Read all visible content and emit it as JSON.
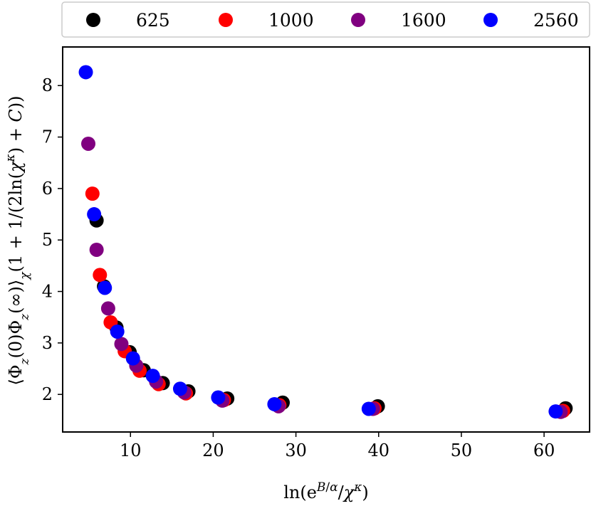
{
  "chart_data": {
    "type": "scatter",
    "xlabel": "ln(e^{B/α}/χ^κ)",
    "ylabel": "⟨Φz(0)Φz(∞)⟩χ(1 + 1/(2ln(χ^κ) + C))",
    "xlim": [
      1.8,
      65.5
    ],
    "ylim": [
      1.27,
      8.75
    ],
    "x_ticks": [
      10,
      20,
      30,
      40,
      50,
      60
    ],
    "y_ticks": [
      2,
      3,
      4,
      5,
      6,
      7,
      8
    ],
    "grid": false,
    "legend_position": "top",
    "series": [
      {
        "name": "625",
        "color": "#000000",
        "points": [
          [
            5.9,
            5.38
          ],
          [
            6.8,
            4.1
          ],
          [
            8.3,
            3.3
          ],
          [
            9.9,
            2.82
          ],
          [
            11.6,
            2.47
          ],
          [
            13.9,
            2.22
          ],
          [
            17.0,
            2.06
          ],
          [
            21.7,
            1.92
          ],
          [
            28.4,
            1.84
          ],
          [
            39.9,
            1.77
          ],
          [
            62.6,
            1.73
          ]
        ]
      },
      {
        "name": "1000",
        "color": "#ff0000",
        "points": [
          [
            5.4,
            5.9
          ],
          [
            6.3,
            4.32
          ],
          [
            7.6,
            3.4
          ],
          [
            9.3,
            2.84
          ],
          [
            11.1,
            2.46
          ],
          [
            13.4,
            2.2
          ],
          [
            16.7,
            2.02
          ],
          [
            21.3,
            1.89
          ],
          [
            28.0,
            1.79
          ],
          [
            39.5,
            1.73
          ],
          [
            62.3,
            1.68
          ]
        ]
      },
      {
        "name": "1600",
        "color": "#800080",
        "points": [
          [
            4.9,
            6.87
          ],
          [
            5.9,
            4.81
          ],
          [
            7.3,
            3.67
          ],
          [
            8.9,
            2.98
          ],
          [
            10.7,
            2.56
          ],
          [
            13.1,
            2.25
          ],
          [
            16.5,
            2.04
          ],
          [
            21.1,
            1.88
          ],
          [
            27.9,
            1.77
          ],
          [
            39.3,
            1.72
          ],
          [
            62.0,
            1.66
          ]
        ]
      },
      {
        "name": "2560",
        "color": "#0000ff",
        "points": [
          [
            4.6,
            8.26
          ],
          [
            5.6,
            5.5
          ],
          [
            6.9,
            4.07
          ],
          [
            8.4,
            3.22
          ],
          [
            10.3,
            2.7
          ],
          [
            12.7,
            2.36
          ],
          [
            16.0,
            2.11
          ],
          [
            20.6,
            1.94
          ],
          [
            27.4,
            1.81
          ],
          [
            38.8,
            1.72
          ],
          [
            61.4,
            1.67
          ]
        ]
      }
    ]
  }
}
